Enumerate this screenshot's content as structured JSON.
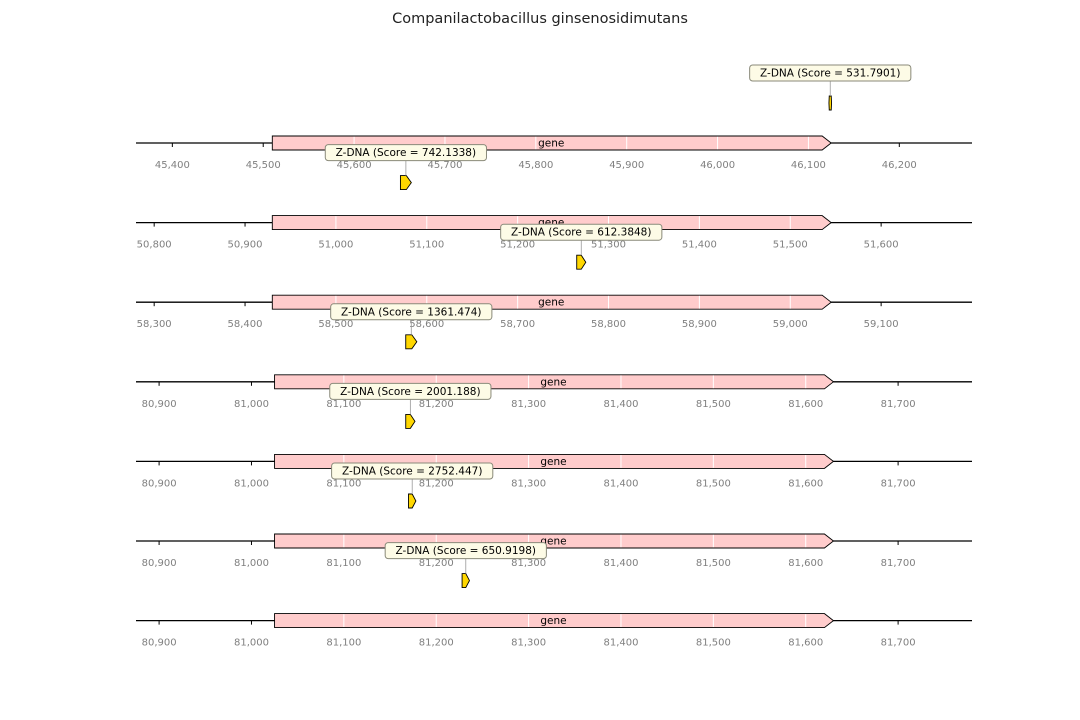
{
  "title": "Companilactobacillus ginsenosidimutans",
  "colors": {
    "gene_fill": "#ffcccc",
    "motif_fill": "#ffd700",
    "label_box_fill": "#fdfbe6",
    "label_box_stroke": "#8a8a7a",
    "axis_line": "#000000",
    "tick_text": "#808080"
  },
  "chart_data": {
    "type": "genome_feature_tracks",
    "tracks": [
      {
        "view": [
          45360,
          46280
        ],
        "ticks": [
          45400,
          45500,
          45600,
          45700,
          45800,
          45900,
          46000,
          46100,
          46200
        ],
        "gene": {
          "label": "gene",
          "start": 45510,
          "end": 46125,
          "strand": "+"
        },
        "motif": {
          "label": "Z-DNA (Score = 531.7901)",
          "start": 46123,
          "end": 46125
        }
      },
      {
        "view": [
          50780,
          51700
        ],
        "ticks": [
          50800,
          50900,
          51000,
          51100,
          51200,
          51300,
          51400,
          51500,
          51600
        ],
        "gene": {
          "label": "gene",
          "start": 50930,
          "end": 51545,
          "strand": "+"
        },
        "motif": {
          "label": "Z-DNA (Score = 742.1338)",
          "start": 51071,
          "end": 51083
        }
      },
      {
        "view": [
          58280,
          59200
        ],
        "ticks": [
          58300,
          58400,
          58500,
          58600,
          58700,
          58800,
          58900,
          59000,
          59100
        ],
        "gene": {
          "label": "gene",
          "start": 58430,
          "end": 59045,
          "strand": "+"
        },
        "motif": {
          "label": "Z-DNA (Score = 612.3848)",
          "start": 58765,
          "end": 58775
        }
      },
      {
        "view": [
          80875,
          81780
        ],
        "ticks": [
          80900,
          81000,
          81100,
          81200,
          81300,
          81400,
          81500,
          81600,
          81700
        ],
        "gene": {
          "label": "gene",
          "start": 81025,
          "end": 81630,
          "strand": "+"
        },
        "motif": {
          "label": "Z-DNA (Score = 1361.474)",
          "start": 81167,
          "end": 81179
        }
      },
      {
        "view": [
          80875,
          81780
        ],
        "ticks": [
          80900,
          81000,
          81100,
          81200,
          81300,
          81400,
          81500,
          81600,
          81700
        ],
        "gene": {
          "label": "gene",
          "start": 81025,
          "end": 81630,
          "strand": "+"
        },
        "motif": {
          "label": "Z-DNA (Score = 2001.188)",
          "start": 81167,
          "end": 81177
        }
      },
      {
        "view": [
          80875,
          81780
        ],
        "ticks": [
          80900,
          81000,
          81100,
          81200,
          81300,
          81400,
          81500,
          81600,
          81700
        ],
        "gene": {
          "label": "gene",
          "start": 81025,
          "end": 81630,
          "strand": "+"
        },
        "motif": {
          "label": "Z-DNA (Score = 2752.447)",
          "start": 81170,
          "end": 81178
        }
      },
      {
        "view": [
          80875,
          81780
        ],
        "ticks": [
          80900,
          81000,
          81100,
          81200,
          81300,
          81400,
          81500,
          81600,
          81700
        ],
        "gene": {
          "label": "gene",
          "start": 81025,
          "end": 81630,
          "strand": "+"
        },
        "motif": {
          "label": "Z-DNA (Score = 650.9198)",
          "start": 81228,
          "end": 81236
        }
      }
    ]
  }
}
